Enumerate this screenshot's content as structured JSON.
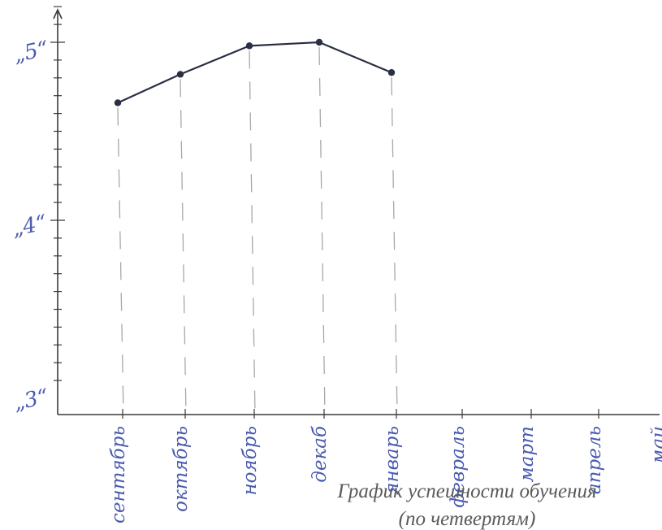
{
  "chart_data": {
    "type": "line",
    "title": "График успешности обучения",
    "subtitle": "(по четвертям)",
    "ylabels": [
      "„5“",
      "„4“",
      "„3“"
    ],
    "categories": [
      "сентябрь",
      "октябрь",
      "ноябрь",
      "декаб",
      "январь",
      "февраль",
      "март",
      "апрель",
      "май"
    ],
    "series": [
      {
        "values": [
          4.66,
          4.82,
          4.98,
          5.0,
          4.83,
          null,
          null,
          null,
          null
        ]
      }
    ],
    "ylim": [
      3,
      5.3
    ],
    "grid": false,
    "colors": {
      "line": "#2a2f45",
      "labels": "#4a5bb0",
      "axis": "#3a3a3a",
      "guides": "#a8a8a8"
    }
  }
}
